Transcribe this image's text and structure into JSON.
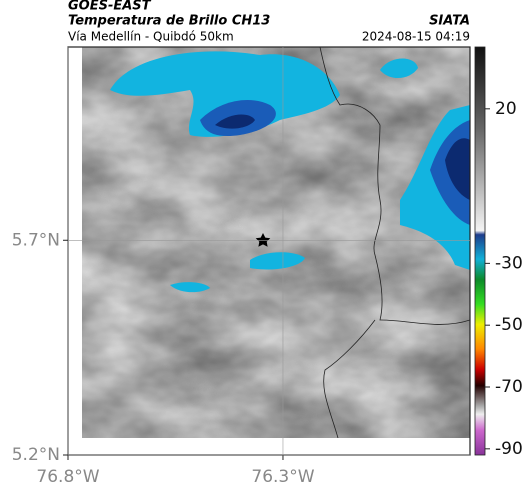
{
  "header": {
    "product": "GOES-EAST",
    "title": "Temperatura de Brillo CH13",
    "source": "SIATA",
    "route": "Vía Medellín - Quibdó 50km",
    "datetime": "2024-08-15 04:19"
  },
  "map": {
    "xlim": [
      -76.8,
      -75.865
    ],
    "ylim": [
      5.2,
      6.15
    ],
    "xticks": [
      {
        "value": -76.8,
        "label": "76.8°W"
      },
      {
        "value": -76.3,
        "label": "76.3°W"
      }
    ],
    "yticks": [
      {
        "value": 5.7,
        "label": "5.7°N"
      },
      {
        "value": 5.2,
        "label": "5.2°N"
      }
    ],
    "grid": true
  },
  "colorbar": {
    "lim": [
      40,
      -92
    ],
    "ticks": [
      20,
      -30,
      -50,
      -70,
      -90
    ]
  }
}
